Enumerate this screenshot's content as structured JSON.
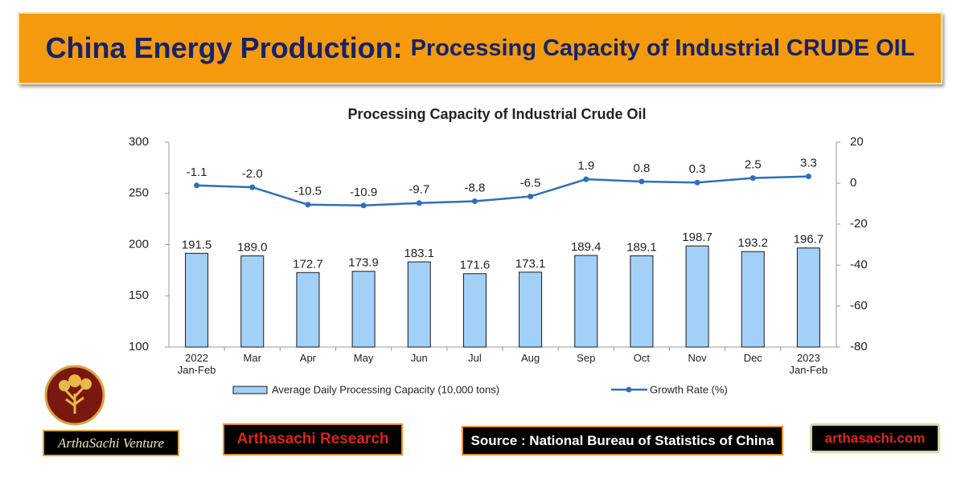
{
  "header": {
    "title": "China Energy Production:",
    "subtitle": "Processing Capacity of Industrial CRUDE OIL"
  },
  "chart_data": {
    "type": "bar",
    "title": "Processing Capacity of Industrial Crude Oil",
    "categories": [
      "2022\nJan-Feb",
      "Mar",
      "Apr",
      "May",
      "Jun",
      "Jul",
      "Aug",
      "Sep",
      "Oct",
      "Nov",
      "Dec",
      "2023\nJan-Feb"
    ],
    "series": [
      {
        "name": "Average Daily Processing Capacity (10,000 tons)",
        "type": "bar",
        "color": "#a3d0f7",
        "values": [
          191.5,
          189.0,
          172.7,
          173.9,
          183.1,
          171.6,
          173.1,
          189.4,
          189.1,
          198.7,
          193.2,
          196.7
        ],
        "value_labels": [
          "191.5",
          "189.0",
          "172.7",
          "173.9",
          "183.1",
          "171.6",
          "173.1",
          "189.4",
          "189.1",
          "198.7",
          "193.2",
          "196.7"
        ]
      },
      {
        "name": "Growth Rate (%)",
        "type": "line",
        "axis": "y2",
        "color": "#2f6fb8",
        "values": [
          -1.1,
          -2.0,
          -10.5,
          -10.9,
          -9.7,
          -8.8,
          -6.5,
          1.9,
          0.8,
          0.3,
          2.5,
          3.3
        ],
        "value_labels": [
          "-1.1",
          "-2.0",
          "-10.5",
          "-10.9",
          "-9.7",
          "-8.8",
          "-6.5",
          "1.9",
          "0.8",
          "0.3",
          "2.5",
          "3.3"
        ]
      }
    ],
    "ylim": [
      100,
      300
    ],
    "yticks": [
      100,
      150,
      200,
      250,
      300
    ],
    "y2lim": [
      -80,
      20
    ],
    "y2ticks": [
      -80,
      -60,
      -40,
      -20,
      0,
      20
    ],
    "legend": "bottom"
  },
  "footer": {
    "logo": "ArthaSachi Venture",
    "research": "Arthasachi Research",
    "source": "Source : National Bureau of Statistics of China",
    "website": "arthasachi.com"
  }
}
